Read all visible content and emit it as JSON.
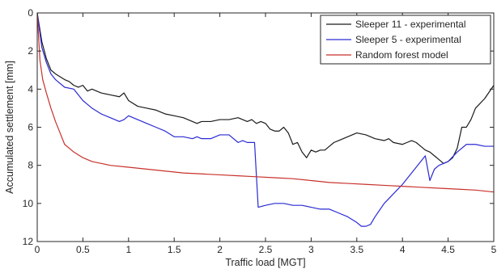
{
  "chart_data": {
    "type": "line",
    "title": "",
    "xlabel": "Traffic load [MGT]",
    "ylabel": "Accumulated settlement [mm]",
    "xlim": [
      0,
      5
    ],
    "ylim": [
      0,
      12
    ],
    "y_reversed": true,
    "xticks": [
      0,
      0.5,
      1,
      1.5,
      2,
      2.5,
      3,
      3.5,
      4,
      4.5,
      5
    ],
    "xtick_labels": [
      "0",
      "0.5",
      "1",
      "1.5",
      "2",
      "2.5",
      "3",
      "3.5",
      "4",
      "4.5",
      "5"
    ],
    "yticks": [
      0,
      2,
      4,
      6,
      8,
      10,
      12
    ],
    "ytick_labels": [
      "0",
      "2",
      "4",
      "6",
      "8",
      "10",
      "12"
    ],
    "grid": false,
    "legend_position": "top-right",
    "series": [
      {
        "name": "Sleeper 11 - experimental",
        "color": "#1a1a1a",
        "x": [
          0,
          0.05,
          0.1,
          0.15,
          0.2,
          0.3,
          0.35,
          0.4,
          0.45,
          0.5,
          0.55,
          0.6,
          0.7,
          0.8,
          0.9,
          0.95,
          1.0,
          1.1,
          1.2,
          1.3,
          1.4,
          1.5,
          1.6,
          1.7,
          1.75,
          1.8,
          1.9,
          2.0,
          2.1,
          2.2,
          2.3,
          2.35,
          2.4,
          2.45,
          2.5,
          2.55,
          2.6,
          2.65,
          2.7,
          2.75,
          2.8,
          2.85,
          2.9,
          2.95,
          3.0,
          3.05,
          3.1,
          3.15,
          3.2,
          3.25,
          3.3,
          3.4,
          3.5,
          3.6,
          3.7,
          3.8,
          3.85,
          3.9,
          4.0,
          4.05,
          4.1,
          4.15,
          4.2,
          4.25,
          4.3,
          4.35,
          4.4,
          4.45,
          4.5,
          4.55,
          4.6,
          4.65,
          4.7,
          4.75,
          4.8,
          4.9,
          5.0
        ],
        "y": [
          0,
          1.5,
          2.4,
          3.0,
          3.2,
          3.5,
          3.6,
          3.8,
          3.9,
          3.8,
          4.1,
          4.0,
          4.2,
          4.3,
          4.4,
          4.2,
          4.6,
          4.9,
          5.0,
          5.1,
          5.3,
          5.4,
          5.5,
          5.7,
          5.8,
          5.7,
          5.7,
          5.6,
          5.6,
          5.5,
          5.7,
          5.6,
          5.8,
          5.7,
          5.8,
          6.1,
          6.2,
          6.2,
          6.0,
          6.3,
          6.9,
          6.8,
          7.3,
          7.6,
          7.2,
          7.3,
          7.2,
          7.2,
          7.0,
          6.8,
          6.7,
          6.5,
          6.3,
          6.4,
          6.6,
          6.7,
          6.6,
          6.8,
          6.9,
          6.8,
          6.7,
          6.8,
          7.0,
          7.2,
          7.3,
          7.5,
          7.7,
          7.9,
          7.8,
          7.6,
          7.1,
          6.0,
          6.0,
          5.6,
          5.0,
          4.5,
          3.8
        ]
      },
      {
        "name": "Sleeper 5 - experimental",
        "color": "#2a2ad4",
        "x": [
          0,
          0.05,
          0.1,
          0.15,
          0.2,
          0.3,
          0.4,
          0.45,
          0.5,
          0.55,
          0.6,
          0.7,
          0.8,
          0.9,
          0.95,
          1.0,
          1.1,
          1.2,
          1.3,
          1.4,
          1.5,
          1.55,
          1.6,
          1.7,
          1.75,
          1.8,
          1.9,
          2.0,
          2.1,
          2.2,
          2.25,
          2.3,
          2.35,
          2.38,
          2.42,
          2.5,
          2.6,
          2.7,
          2.8,
          2.9,
          3.0,
          3.1,
          3.2,
          3.3,
          3.4,
          3.5,
          3.55,
          3.6,
          3.65,
          3.7,
          3.8,
          3.9,
          4.0,
          4.1,
          4.2,
          4.25,
          4.3,
          4.35,
          4.4,
          4.45,
          4.5,
          4.6,
          4.7,
          4.8,
          4.9,
          5.0
        ],
        "y": [
          0,
          1.8,
          2.6,
          3.2,
          3.5,
          3.9,
          4.0,
          4.3,
          4.6,
          4.8,
          5.0,
          5.3,
          5.5,
          5.7,
          5.6,
          5.4,
          5.6,
          5.8,
          6.0,
          6.2,
          6.5,
          6.5,
          6.5,
          6.6,
          6.5,
          6.6,
          6.6,
          6.4,
          6.4,
          6.8,
          6.7,
          6.8,
          6.8,
          6.8,
          10.2,
          10.1,
          10.0,
          10.0,
          10.1,
          10.1,
          10.2,
          10.3,
          10.3,
          10.5,
          10.7,
          11.0,
          11.2,
          11.2,
          11.1,
          10.7,
          10.0,
          9.5,
          9.0,
          8.4,
          7.8,
          7.5,
          8.8,
          8.2,
          8.0,
          7.9,
          7.8,
          7.3,
          6.9,
          6.9,
          7.0,
          7.0
        ]
      },
      {
        "name": "Random forest model",
        "color": "#c8312b",
        "x": [
          0,
          0.03,
          0.06,
          0.1,
          0.15,
          0.2,
          0.25,
          0.3,
          0.35,
          0.4,
          0.5,
          0.6,
          0.7,
          0.8,
          1.0,
          1.2,
          1.4,
          1.6,
          1.8,
          2.0,
          2.2,
          2.4,
          2.6,
          2.8,
          3.0,
          3.2,
          3.4,
          3.6,
          3.8,
          4.0,
          4.2,
          4.4,
          4.6,
          4.8,
          5.0
        ],
        "y": [
          0,
          2.5,
          3.5,
          4.2,
          5.0,
          5.7,
          6.3,
          6.9,
          7.1,
          7.3,
          7.6,
          7.8,
          7.9,
          8.0,
          8.1,
          8.2,
          8.3,
          8.4,
          8.45,
          8.5,
          8.55,
          8.6,
          8.65,
          8.7,
          8.8,
          8.9,
          8.95,
          9.0,
          9.05,
          9.1,
          9.15,
          9.2,
          9.25,
          9.3,
          9.4
        ]
      }
    ]
  }
}
